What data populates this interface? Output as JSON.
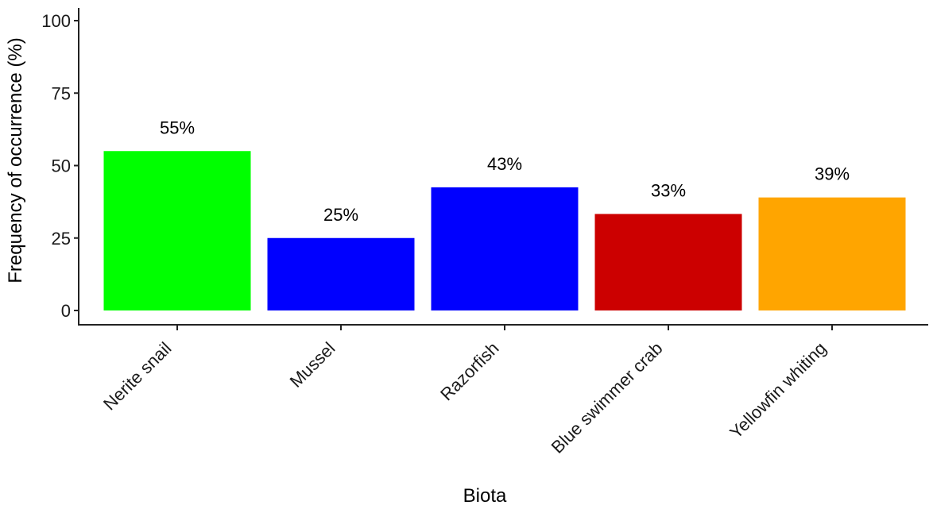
{
  "chart_data": {
    "type": "bar",
    "xlabel": "Biota",
    "ylabel": "Frequency of occurrence (%)",
    "ylim": [
      0,
      100
    ],
    "yticks": [
      0,
      25,
      50,
      75,
      100
    ],
    "categories": [
      "Nerite snail",
      "Mussel",
      "Razorfish",
      "Blue swimmer crab",
      "Yellowfin whiting"
    ],
    "values": [
      55,
      25,
      42.5,
      33.3,
      39
    ],
    "data_labels": [
      "55%",
      "25%",
      "43%",
      "33%",
      "39%"
    ],
    "colors": [
      "#00ff00",
      "#0000ff",
      "#0000ff",
      "#cc0000",
      "#ffa500"
    ],
    "grid": false,
    "legend": "none"
  }
}
